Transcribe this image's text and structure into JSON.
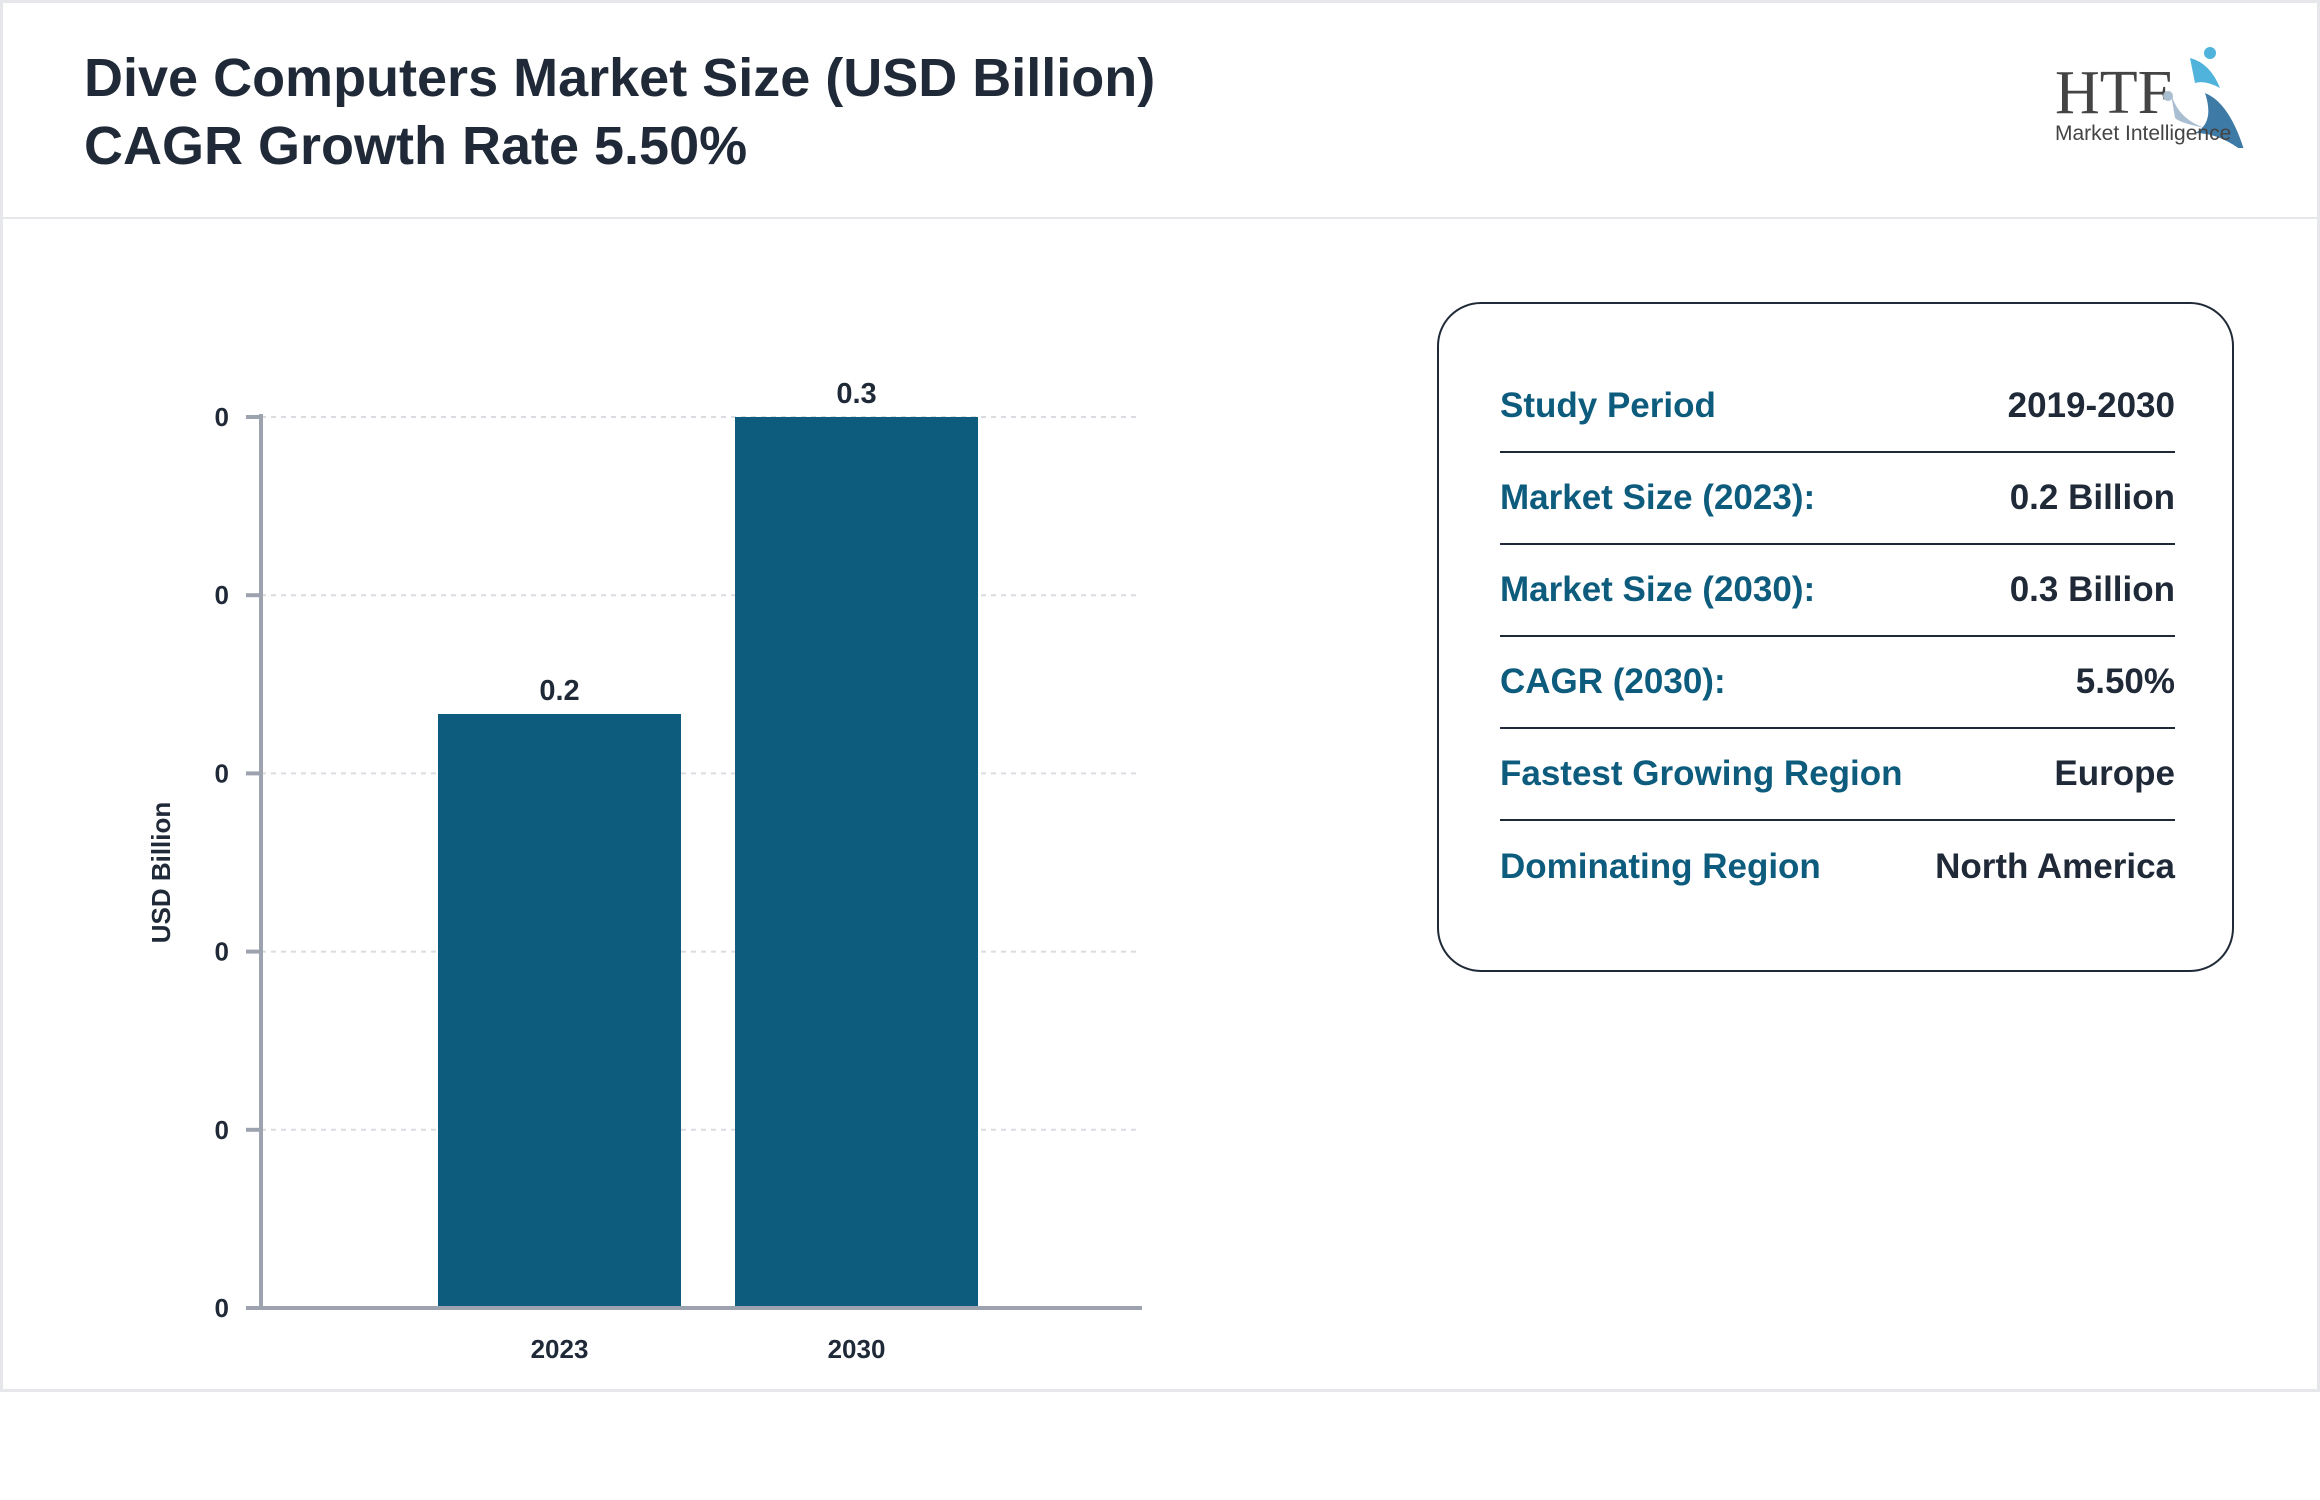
{
  "header": {
    "title_line1": "Dive Computers Market Size (USD Billion)",
    "title_line2": "CAGR Growth Rate 5.50%"
  },
  "logo": {
    "text": "HTF",
    "subtext": "Market Intelligence"
  },
  "colors": {
    "bar": "#0d5c7d",
    "label": "#0d5c7d",
    "text": "#1f2937"
  },
  "chart_data": {
    "type": "bar",
    "categories": [
      "2023",
      "2030"
    ],
    "values": [
      0.2,
      0.3
    ],
    "data_labels": [
      "0.2",
      "0.3"
    ],
    "ylabel": "USD Billion",
    "ylim": [
      0,
      0.3
    ],
    "y_tick_labels": [
      "0",
      "0",
      "0",
      "0",
      "0",
      "0"
    ],
    "grid": true
  },
  "summary": {
    "rows": [
      {
        "label": "Study Period",
        "value": "2019-2030"
      },
      {
        "label": "Market Size (2023):",
        "value": "0.2 Billion"
      },
      {
        "label": "Market Size (2030):",
        "value": "0.3 Billion"
      },
      {
        "label": "CAGR (2030):",
        "value": "5.50%"
      },
      {
        "label": "Fastest Growing Region",
        "value": "Europe"
      },
      {
        "label": "Dominating Region",
        "value": "North America"
      }
    ]
  }
}
